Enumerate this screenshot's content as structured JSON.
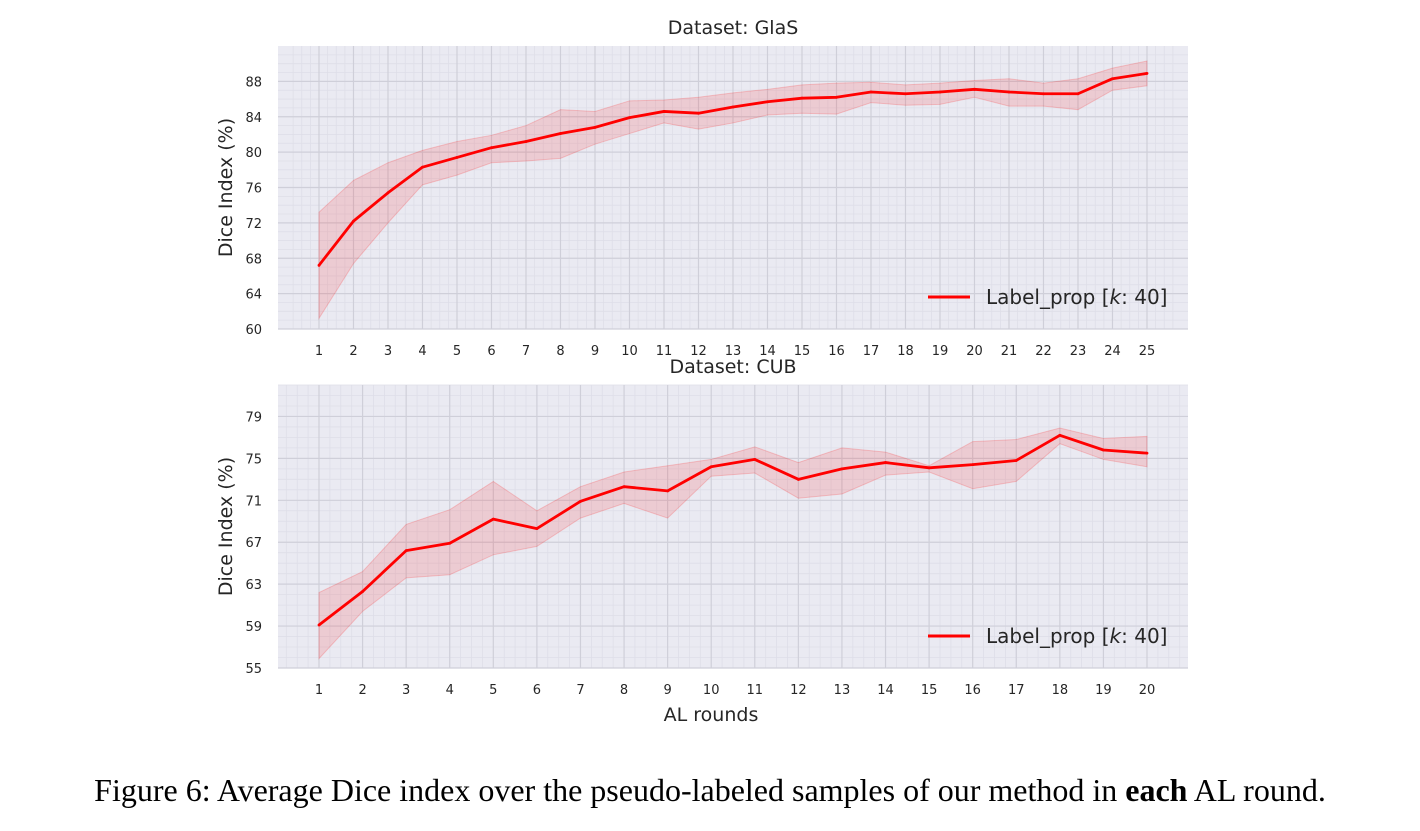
{
  "chart_data": [
    {
      "type": "line",
      "title": "Dataset: GlaS",
      "xlabel": "",
      "ylabel": "Dice Index (%)",
      "x": [
        1,
        2,
        3,
        4,
        5,
        6,
        7,
        8,
        9,
        10,
        11,
        12,
        13,
        14,
        15,
        16,
        17,
        18,
        19,
        20,
        21,
        22,
        23,
        24,
        25
      ],
      "xticks": [
        "1",
        "2",
        "3",
        "4",
        "5",
        "6",
        "7",
        "8",
        "9",
        "10",
        "11",
        "12",
        "13",
        "14",
        "15",
        "16",
        "17",
        "18",
        "19",
        "20",
        "21",
        "22",
        "23",
        "24",
        "25"
      ],
      "ylim": [
        60,
        92
      ],
      "yticks": [
        60,
        64,
        68,
        72,
        76,
        80,
        84,
        88
      ],
      "grid": true,
      "legend_position": "bottom-right",
      "series": [
        {
          "name": "Label_prop [k: 40]",
          "legend_prefix": "Label_prop [",
          "legend_italic": "k",
          "legend_suffix": ": 40]",
          "color": "#ff0000",
          "values": [
            67.2,
            72.2,
            75.4,
            78.3,
            79.4,
            80.5,
            81.2,
            82.1,
            82.8,
            83.9,
            84.6,
            84.4,
            85.1,
            85.7,
            86.1,
            86.2,
            86.8,
            86.6,
            86.8,
            87.1,
            86.8,
            86.6,
            86.6,
            88.3,
            88.9
          ],
          "upper": [
            73.2,
            76.8,
            78.8,
            80.2,
            81.2,
            81.9,
            83.0,
            84.8,
            84.6,
            85.8,
            85.9,
            86.2,
            86.7,
            87.1,
            87.6,
            87.8,
            87.9,
            87.6,
            87.8,
            88.1,
            88.3,
            87.8,
            88.3,
            89.5,
            90.3
          ],
          "lower": [
            61.2,
            67.4,
            72.0,
            76.3,
            77.4,
            78.8,
            79.0,
            79.3,
            80.9,
            82.1,
            83.3,
            82.6,
            83.3,
            84.2,
            84.4,
            84.3,
            85.6,
            85.3,
            85.4,
            86.2,
            85.2,
            85.2,
            84.8,
            87.0,
            87.5
          ]
        }
      ]
    },
    {
      "type": "line",
      "title": "Dataset: CUB",
      "xlabel": "AL rounds",
      "ylabel": "Dice Index (%)",
      "x": [
        1,
        2,
        3,
        4,
        5,
        6,
        7,
        8,
        9,
        10,
        11,
        12,
        13,
        14,
        15,
        16,
        17,
        18,
        19,
        20
      ],
      "xticks": [
        "1",
        "2",
        "3",
        "4",
        "5",
        "6",
        "7",
        "8",
        "9",
        "10",
        "11",
        "12",
        "13",
        "14",
        "15",
        "16",
        "17",
        "18",
        "19",
        "20"
      ],
      "ylim": [
        55,
        82
      ],
      "yticks": [
        55,
        59,
        63,
        67,
        71,
        75,
        79
      ],
      "grid": true,
      "legend_position": "bottom-right",
      "series": [
        {
          "name": "Label_prop [k: 40]",
          "legend_prefix": "Label_prop [",
          "legend_italic": "k",
          "legend_suffix": ": 40]",
          "color": "#ff0000",
          "values": [
            59.1,
            62.3,
            66.2,
            66.9,
            69.2,
            68.3,
            70.9,
            72.3,
            71.9,
            74.2,
            74.9,
            73.0,
            74.0,
            74.6,
            74.1,
            74.4,
            74.8,
            77.2,
            75.8,
            75.5
          ],
          "upper": [
            62.2,
            64.2,
            68.7,
            70.1,
            72.8,
            70.0,
            72.3,
            73.7,
            74.3,
            74.9,
            76.1,
            74.6,
            76.0,
            75.6,
            74.3,
            76.6,
            76.8,
            77.9,
            76.9,
            77.1
          ],
          "lower": [
            55.9,
            60.4,
            63.6,
            63.9,
            65.8,
            66.6,
            69.3,
            70.7,
            69.3,
            73.3,
            73.6,
            71.2,
            71.6,
            73.4,
            73.7,
            72.1,
            72.8,
            76.4,
            74.9,
            74.2
          ]
        }
      ]
    }
  ],
  "caption": {
    "prefix": "Figure 6: Average Dice index over the pseudo-labeled samples of our method in ",
    "bold": "each",
    "suffix": " AL round."
  },
  "colors": {
    "plot_background": "#eaeaf2",
    "major_grid": "#cfcfd9",
    "minor_grid": "#dedee8",
    "band_fill": "#ff0000",
    "text": "#262626"
  }
}
